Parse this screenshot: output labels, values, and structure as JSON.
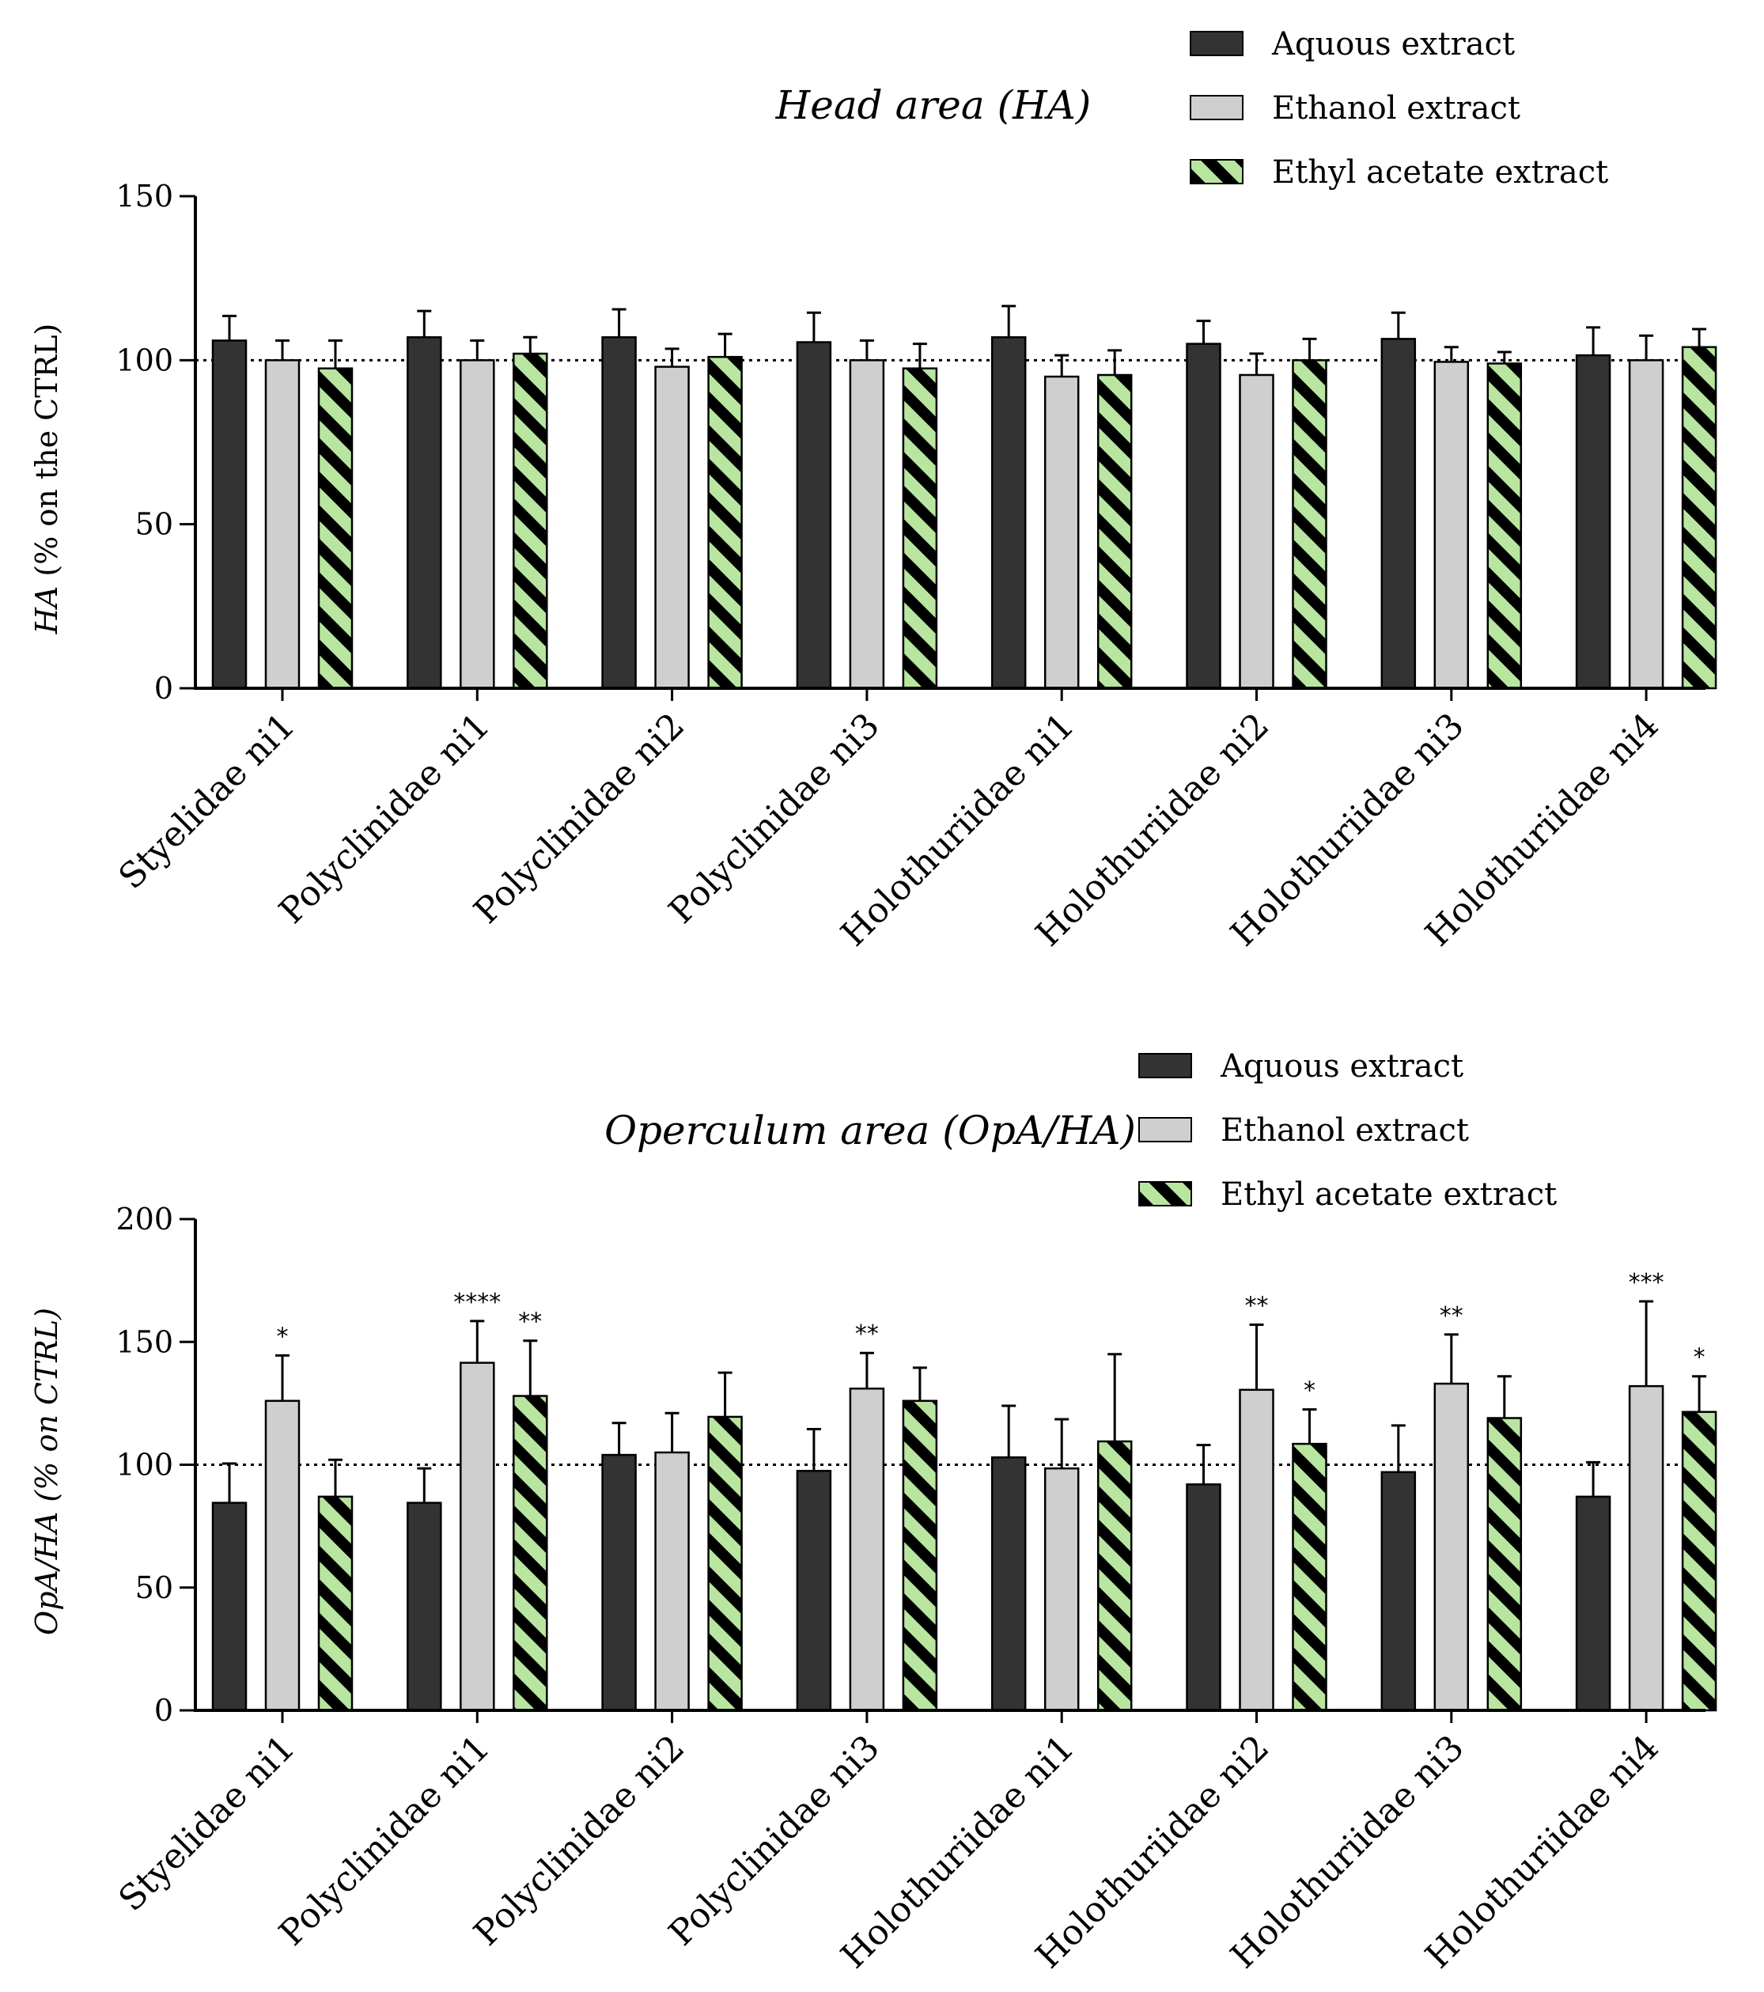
{
  "colors": {
    "aqueous": "#333333",
    "ethanol": "#cfcfcf",
    "ethyl_acetate": "#b8e6a0",
    "stripe": "#000000"
  },
  "chart_data": [
    {
      "type": "bar",
      "title": "Head area (HA)",
      "ylabel_italic": "HA",
      "ylabel_rest": " (% on the CTRL)",
      "ylim": [
        0,
        150
      ],
      "yticks": [
        "0",
        "50",
        "100",
        "150"
      ],
      "yticks_values": [
        0,
        50,
        100,
        150
      ],
      "reference_line": 100,
      "legend_position": "top-right",
      "categories": [
        "Styelidae ni1",
        "Polyclinidae ni1",
        "Polyclinidae ni2",
        "Polyclinidae ni3",
        "Holothuriidae ni1",
        "Holothuriidae ni2",
        "Holothuriidae ni3",
        "Holothuriidae ni4"
      ],
      "series": [
        {
          "name": "Aquous extract",
          "key": "aqueous",
          "values": [
            106,
            107,
            107,
            105.5,
            107,
            105,
            106.5,
            101.5
          ],
          "errors": [
            7.5,
            8,
            8.5,
            9,
            9.5,
            7,
            8,
            8.5
          ]
        },
        {
          "name": "Ethanol extract",
          "key": "ethanol",
          "values": [
            100,
            100,
            98,
            100,
            95,
            95.5,
            99.5,
            100
          ],
          "errors": [
            6,
            6,
            5.5,
            6,
            6.5,
            6.5,
            4.5,
            7.5
          ]
        },
        {
          "name": "Ethyl acetate extract",
          "key": "ethyl_acetate",
          "values": [
            97.5,
            102,
            101,
            97.5,
            95.5,
            100,
            99,
            104
          ],
          "errors": [
            8.5,
            5,
            7,
            7.5,
            7.5,
            6.5,
            3.5,
            5.5
          ]
        }
      ],
      "significance": [
        [
          "",
          "",
          ""
        ],
        [
          "",
          "",
          ""
        ],
        [
          "",
          "",
          ""
        ],
        [
          "",
          "",
          ""
        ],
        [
          "",
          "",
          ""
        ],
        [
          "",
          "",
          ""
        ],
        [
          "",
          "",
          ""
        ],
        [
          "",
          "",
          ""
        ]
      ]
    },
    {
      "type": "bar",
      "title": "Operculum area (OpA/HA)",
      "ylabel_italic": "OpA/HA (% on CTRL)",
      "ylabel_rest": "",
      "ylim": [
        0,
        200
      ],
      "yticks": [
        "0",
        "50",
        "100",
        "150",
        "200"
      ],
      "yticks_values": [
        0,
        50,
        100,
        150,
        200
      ],
      "reference_line": 100,
      "legend_position": "top-right",
      "categories": [
        "Styelidae ni1",
        "Polyclinidae ni1",
        "Polyclinidae ni2",
        "Polyclinidae ni3",
        "Holothuriidae ni1",
        "Holothuriidae ni2",
        "Holothuriidae ni3",
        "Holothuriidae ni4"
      ],
      "series": [
        {
          "name": "Aquous extract",
          "key": "aqueous",
          "values": [
            84.5,
            84.5,
            104,
            97.5,
            103,
            92,
            97,
            87
          ],
          "errors": [
            16,
            14,
            13,
            17,
            21,
            16,
            19,
            14
          ]
        },
        {
          "name": "Ethanol extract",
          "key": "ethanol",
          "values": [
            126,
            141.5,
            105,
            131,
            98.5,
            130.5,
            133,
            132
          ],
          "errors": [
            18.5,
            17,
            16,
            14.5,
            20,
            26.5,
            20,
            34.5
          ]
        },
        {
          "name": "Ethyl acetate extract",
          "key": "ethyl_acetate",
          "values": [
            87,
            128,
            119.5,
            126,
            109.5,
            108.5,
            119,
            121.5
          ],
          "errors": [
            15,
            22.5,
            18,
            13.5,
            35.5,
            14,
            17,
            14.5
          ]
        }
      ],
      "significance": [
        [
          "",
          "*",
          ""
        ],
        [
          "",
          "****",
          "**"
        ],
        [
          "",
          "",
          ""
        ],
        [
          "",
          "**",
          ""
        ],
        [
          "",
          "",
          ""
        ],
        [
          "",
          "**",
          "*"
        ],
        [
          "",
          "**",
          ""
        ],
        [
          "",
          "***",
          "*"
        ]
      ]
    }
  ]
}
